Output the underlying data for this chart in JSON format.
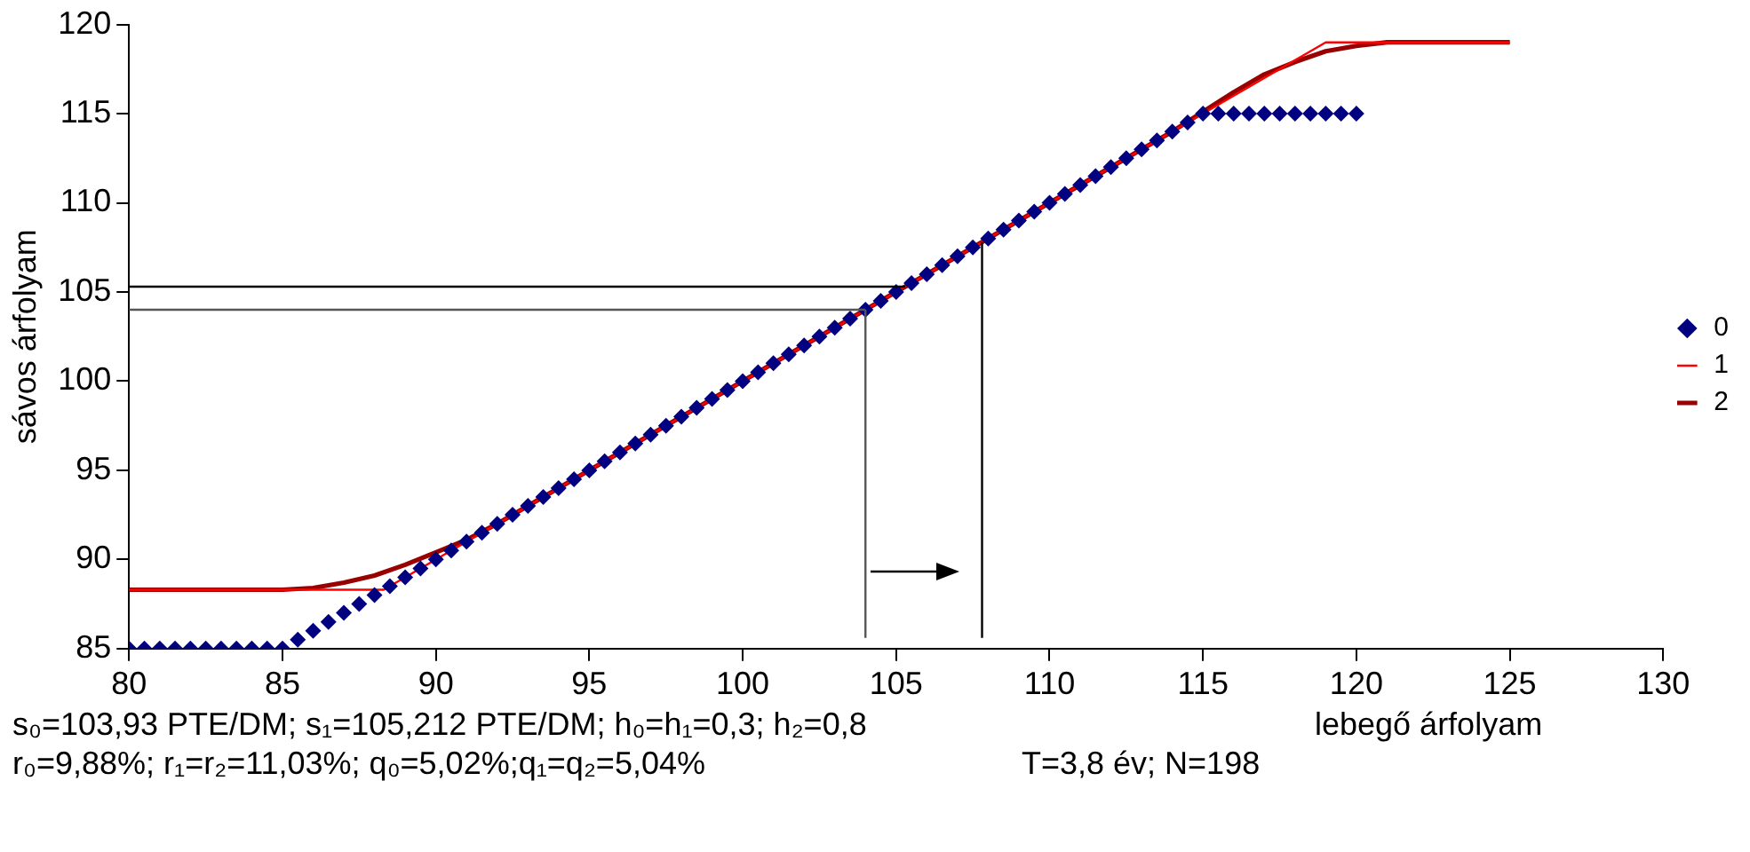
{
  "chart_data": {
    "type": "scatter",
    "ylabel": "sávos árfolyam",
    "xlabel": "lebegő árfolyam",
    "xlim": [
      80,
      130
    ],
    "xticks": [
      80,
      85,
      90,
      95,
      100,
      105,
      110,
      115,
      120,
      125,
      130
    ],
    "ylim": [
      85,
      120
    ],
    "yticks": [
      85,
      90,
      95,
      100,
      105,
      110,
      115,
      120
    ],
    "grid": false,
    "legend": "right",
    "series": [
      {
        "name": "0",
        "type": "scatter",
        "marker": "diamond",
        "color": "#000080",
        "x": [
          80,
          80.5,
          81,
          81.5,
          82,
          82.5,
          83,
          83.5,
          84,
          84.5,
          85,
          85.5,
          86,
          86.5,
          87,
          87.5,
          88,
          88.5,
          89,
          89.5,
          90,
          90.5,
          91,
          91.5,
          92,
          92.5,
          93,
          93.5,
          94,
          94.5,
          95,
          95.5,
          96,
          96.5,
          97,
          97.5,
          98,
          98.5,
          99,
          99.5,
          100,
          100.5,
          101,
          101.5,
          102,
          102.5,
          103,
          103.5,
          104,
          104.5,
          105,
          105.5,
          106,
          106.5,
          107,
          107.5,
          108,
          108.5,
          109,
          109.5,
          110,
          110.5,
          111,
          111.5,
          112,
          112.5,
          113,
          113.5,
          114,
          114.5,
          115,
          115.5,
          116,
          116.5,
          117,
          117.5,
          118,
          118.5,
          119,
          119.5,
          120
        ],
        "values": [
          85,
          85,
          85,
          85,
          85,
          85,
          85,
          85,
          85,
          85,
          85,
          85.5,
          86,
          86.5,
          87,
          87.5,
          88,
          88.5,
          89,
          89.5,
          90,
          90.5,
          91,
          91.5,
          92,
          92.5,
          93,
          93.5,
          94,
          94.5,
          95,
          95.5,
          96,
          96.5,
          97,
          97.5,
          98,
          98.5,
          99,
          99.5,
          100,
          100.5,
          101,
          101.5,
          102,
          102.5,
          103,
          103.5,
          104,
          104.5,
          105,
          105.5,
          106,
          106.5,
          107,
          107.5,
          108,
          108.5,
          109,
          109.5,
          110,
          110.5,
          111,
          111.5,
          112,
          112.5,
          113,
          113.5,
          114,
          114.5,
          115,
          115,
          115,
          115,
          115,
          115,
          115,
          115,
          115,
          115,
          115
        ]
      },
      {
        "name": "1",
        "type": "line",
        "marker": "none",
        "color": "#ff0000",
        "x": [
          80,
          88.3,
          115,
          119,
          125
        ],
        "values": [
          88.3,
          88.3,
          115,
          119,
          119
        ]
      },
      {
        "name": "2",
        "type": "line",
        "marker": "none",
        "color": "#990000",
        "x": [
          80,
          85,
          86,
          87,
          88,
          89,
          90,
          91,
          92,
          93,
          114,
          115,
          116,
          117,
          118,
          119,
          120,
          121,
          122,
          125
        ],
        "values": [
          88.3,
          88.3,
          88.4,
          88.7,
          89.1,
          89.7,
          90.4,
          91.1,
          92,
          93,
          114,
          115.1,
          116.2,
          117.2,
          117.9,
          118.5,
          118.8,
          119,
          119,
          119
        ]
      }
    ],
    "ref_lines": [
      {
        "axis": "y",
        "value": 105.3,
        "color": "#000000"
      },
      {
        "axis": "y",
        "value": 104,
        "color": "#555555"
      },
      {
        "axis": "x",
        "value": 104,
        "color": "#555555"
      },
      {
        "axis": "x",
        "value": 107.8,
        "color": "#000000"
      }
    ],
    "annotations": [
      "s₀=103,93 PTE/DM; s₁=105,212 PTE/DM; h₀=h₁=0,3; h₂=0,8",
      "r₀=9,88%; r₁=r₂=11,03%; q₀=5,02%;q₁=q₂=5,04%",
      "T=3,8 év; N=198"
    ]
  }
}
